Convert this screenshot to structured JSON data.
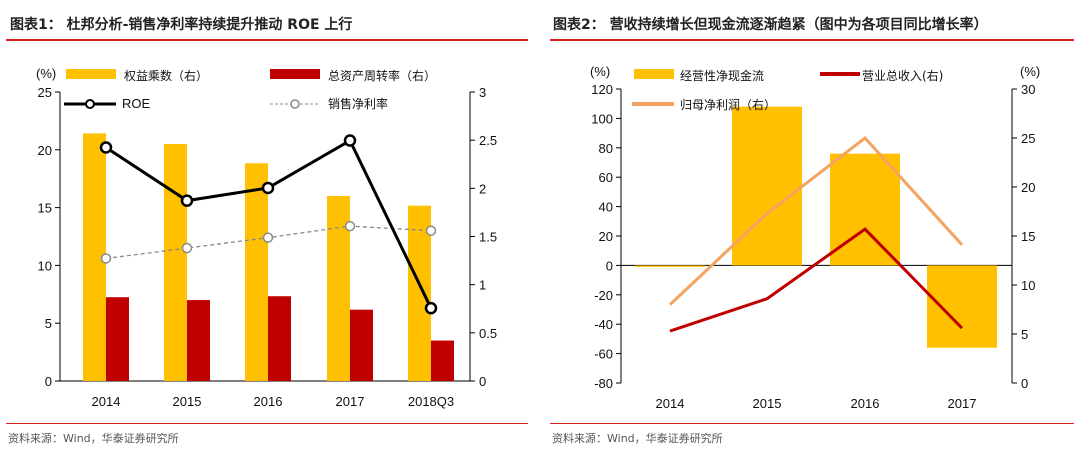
{
  "chart_data": [
    {
      "type": "bar",
      "title": "图表1：  杜邦分析-销售净利率持续提升推动 ROE 上行",
      "unit_label": "(%)",
      "categories": [
        "2014",
        "2015",
        "2016",
        "2017",
        "2018Q3"
      ],
      "ylim_left": [
        0,
        25
      ],
      "yticks_left": [
        0,
        5,
        10,
        15,
        20,
        25
      ],
      "ylim_right": [
        0,
        3
      ],
      "yticks_right": [
        0,
        0.5,
        1,
        1.5,
        2,
        2.5,
        3
      ],
      "series": [
        {
          "name": "权益乘数（右）",
          "kind": "bar",
          "axis": "right",
          "color": "#FFC000",
          "values": [
            2.57,
            2.46,
            2.26,
            1.92,
            1.82
          ]
        },
        {
          "name": "总资产周转率（右）",
          "kind": "bar",
          "axis": "right",
          "color": "#C00000",
          "values": [
            0.87,
            0.84,
            0.88,
            0.74,
            0.42
          ]
        },
        {
          "name": "ROE",
          "kind": "line",
          "axis": "left",
          "color": "#000000",
          "values": [
            20.2,
            15.6,
            16.7,
            20.8,
            6.3
          ]
        },
        {
          "name": "销售净利率",
          "kind": "dashed-line",
          "axis": "left",
          "color": "#888888",
          "values": [
            10.6,
            11.5,
            12.4,
            13.4,
            13.0
          ]
        }
      ],
      "grid": false,
      "legend": "top",
      "source": "资料来源：Wind，华泰证券研究所"
    },
    {
      "type": "bar",
      "title": "图表2：  营收持续增长但现金流逐渐趋紧（图中为各项目同比增长率）",
      "unit_label_left": "(%)",
      "unit_label_right": "(%)",
      "categories": [
        "2014",
        "2015",
        "2016",
        "2017"
      ],
      "ylim_left": [
        -80,
        120
      ],
      "yticks_left": [
        -80,
        -60,
        -40,
        -20,
        0,
        20,
        40,
        60,
        80,
        100,
        120
      ],
      "ylim_right": [
        0,
        30
      ],
      "yticks_right": [
        0,
        5,
        10,
        15,
        20,
        25,
        30
      ],
      "series": [
        {
          "name": "经营性净现金流",
          "kind": "bar",
          "axis": "left",
          "color": "#FFC000",
          "values": [
            -1,
            108,
            76,
            -56
          ]
        },
        {
          "name": "营业总收入(右)",
          "kind": "line",
          "axis": "right",
          "color": "#C00000",
          "values": [
            5.3,
            8.6,
            15.7,
            5.6
          ]
        },
        {
          "name": "归母净利润（右）",
          "kind": "line",
          "axis": "right",
          "color": "#F4A460",
          "values": [
            8.0,
            17.3,
            25.0,
            14.1
          ]
        }
      ],
      "grid": false,
      "legend": "top",
      "source": "资料来源：Wind，华泰证券研究所"
    }
  ]
}
